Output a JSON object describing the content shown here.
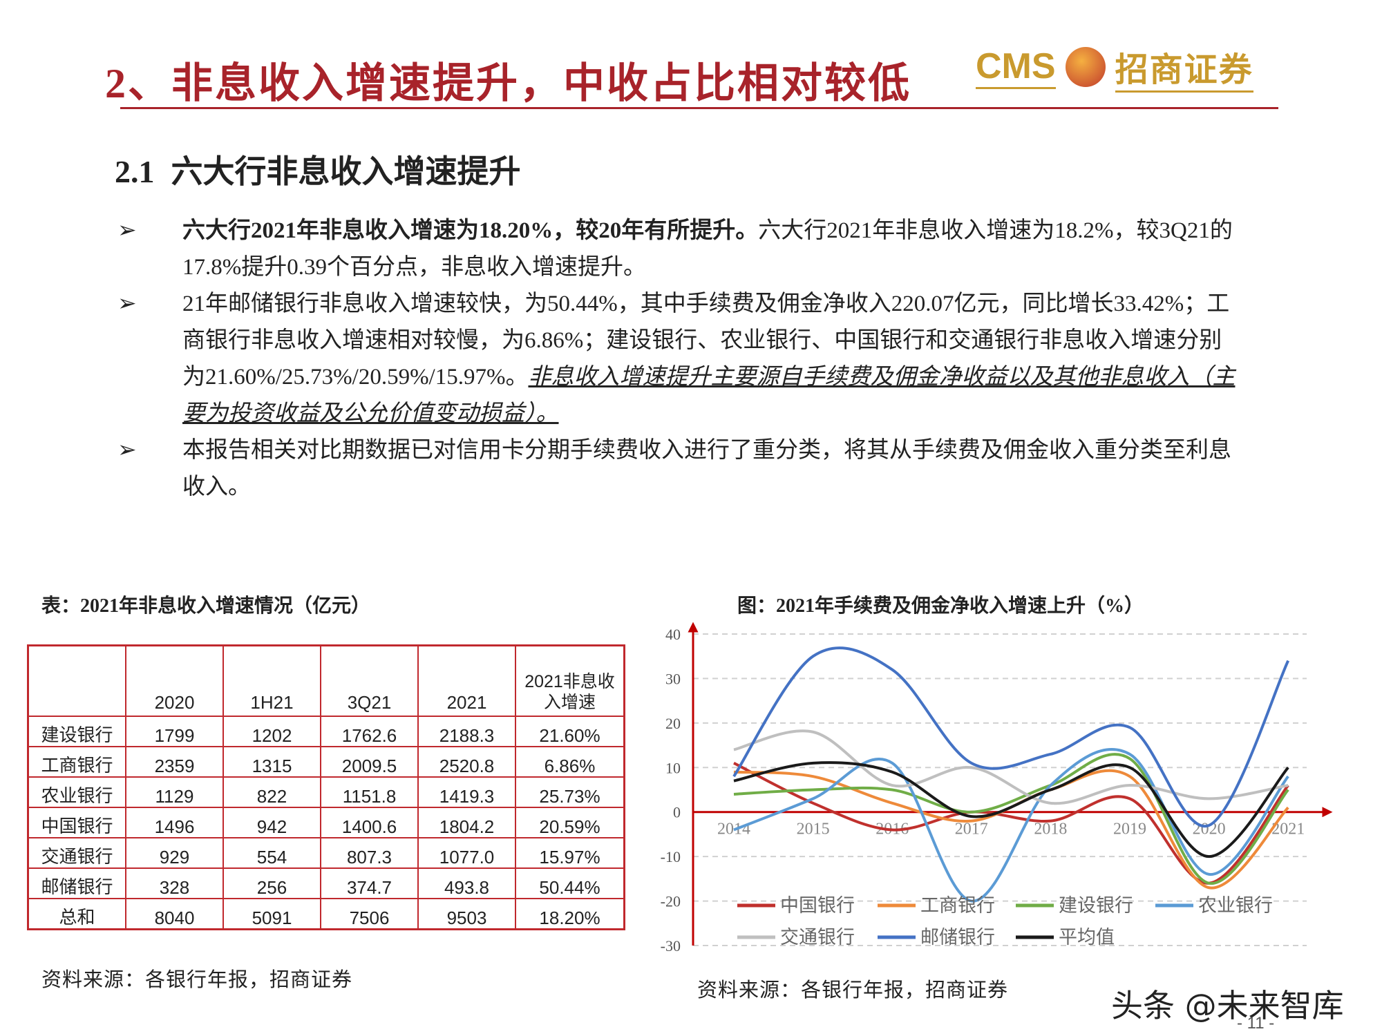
{
  "header": {
    "title": "2、非息收入增速提升，中收占比相对较低",
    "logo_left": "CMS",
    "logo_right": "招商证券"
  },
  "section": {
    "number": "2.1",
    "title": "六大行非息收入增速提升"
  },
  "bullets": [
    {
      "bold": "六大行2021年非息收入增速为18.20%，较20年有所提升。",
      "text": "六大行2021年非息收入增速为18.2%，较3Q21的17.8%提升0.39个百分点，非息收入增速提升。"
    },
    {
      "text": "21年邮储银行非息收入增速较快，为50.44%，其中手续费及佣金净收入220.07亿元，同比增长33.42%；工商银行非息收入增速相对较慢，为6.86%；建设银行、农业银行、中国银行和交通银行非息收入增速分别为21.60%/25.73%/20.59%/15.97%。",
      "emphasis": "非息收入增速提升主要源自手续费及佣金净收益以及其他非息收入（主要为投资收益及公允价值变动损益）。"
    },
    {
      "text": "本报告相关对比期数据已对信用卡分期手续费收入进行了重分类，将其从手续费及佣金收入重分类至利息收入。"
    }
  ],
  "table": {
    "caption": "表：2021年非息收入增速情况（亿元）",
    "columns": [
      "2020",
      "1H21",
      "3Q21",
      "2021",
      "2021非息收入增速"
    ],
    "rows": [
      [
        "建设银行",
        "1799",
        "1202",
        "1762.6",
        "2188.3",
        "21.60%"
      ],
      [
        "工商银行",
        "2359",
        "1315",
        "2009.5",
        "2520.8",
        "6.86%"
      ],
      [
        "农业银行",
        "1129",
        "822",
        "1151.8",
        "1419.3",
        "25.73%"
      ],
      [
        "中国银行",
        "1496",
        "942",
        "1400.6",
        "1804.2",
        "20.59%"
      ],
      [
        "交通银行",
        "929",
        "554",
        "807.3",
        "1077.0",
        "15.97%"
      ],
      [
        "邮储银行",
        "328",
        "256",
        "374.7",
        "493.8",
        "50.44%"
      ],
      [
        "总和",
        "8040",
        "5091",
        "7506",
        "9503",
        "18.20%"
      ]
    ],
    "source": "资料来源：各银行年报，招商证券"
  },
  "chart_data": {
    "type": "line",
    "title": "图：2021年手续费及佣金净收入增速上升（%）",
    "categories": [
      "2014",
      "2015",
      "2016",
      "2017",
      "2018",
      "2019",
      "2020",
      "2021"
    ],
    "series": [
      {
        "name": "中国银行",
        "color": "#c0302d",
        "values": [
          11,
          2,
          -4,
          0,
          -2,
          3,
          -16,
          6
        ]
      },
      {
        "name": "工商银行",
        "color": "#ee8a3a",
        "values": [
          9,
          8,
          2,
          -2,
          5,
          8,
          -17,
          1
        ]
      },
      {
        "name": "建设银行",
        "color": "#70ad47",
        "values": [
          4,
          5,
          5,
          0,
          6,
          12,
          -16,
          5
        ]
      },
      {
        "name": "农业银行",
        "color": "#5b9bd5",
        "values": [
          -4,
          3,
          11,
          -20,
          6,
          13,
          -14,
          8
        ]
      },
      {
        "name": "交通银行",
        "color": "#bfbfbf",
        "values": [
          14,
          18,
          6,
          10,
          2,
          6,
          3,
          6
        ]
      },
      {
        "name": "邮储银行",
        "color": "#4472c4",
        "values": [
          8,
          35,
          32,
          11,
          13,
          19,
          -3,
          34
        ]
      },
      {
        "name": "平均值",
        "color": "#1a1a1a",
        "values": [
          7,
          11,
          9,
          -1,
          5,
          10,
          -10,
          10
        ]
      }
    ],
    "ylim": [
      -30,
      40
    ],
    "yticks": [
      -30,
      -20,
      -10,
      0,
      10,
      20,
      30,
      40
    ],
    "grid": true,
    "axis_color": "#c00000",
    "source": "资料来源：各银行年报，招商证券"
  },
  "watermark": "头条 @未来智库",
  "page_number": "- 11 -"
}
